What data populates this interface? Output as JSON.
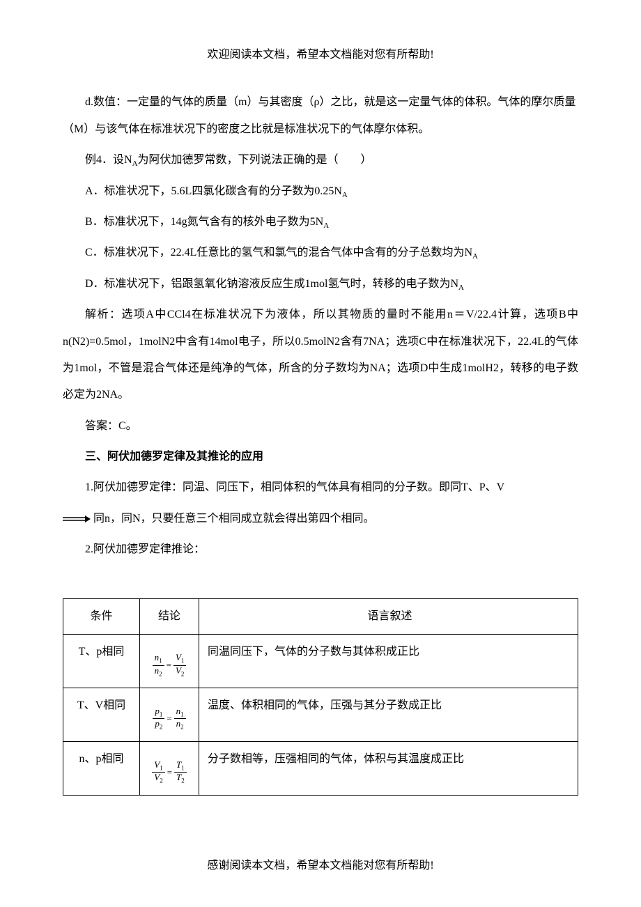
{
  "header": "欢迎阅读本文档，希望本文档能对您有所帮助!",
  "p1": "d.数值：一定量的气体的质量（m）与其密度（ρ）之比，就是这一定量气体的体积。气体的摩尔质量（M）与该气体在标准状况下的密度之比就是标准状况下的气体摩尔体积。",
  "p2_pre": "例4．设N",
  "p2_sub": "A",
  "p2_post": "为阿伏加德罗常数，下列说法正确的是（　　）",
  "optA_pre": "A．标准状况下，5.6L四氯化碳含有的分子数为0.25N",
  "optA_sub": "A",
  "optB_pre": "B．标准状况下，14g氮气含有的核外电子数为5N",
  "optB_sub": "A",
  "optC_pre": "C．标准状况下，22.4L任意比的氢气和氯气的混合气体中含有的分子总数均为N",
  "optC_sub": "A",
  "optD_pre": "D．标准状况下，铝跟氢氧化钠溶液反应生成1mol氢气时，转移的电子数为N",
  "optD_sub": "A",
  "analysis": "解析：选项A中CCl4在标准状况下为液体，所以其物质的量时不能用n＝V/22.4计算，选项B中n(N2)=0.5mol，1molN2中含有14mol电子，所以0.5molN2含有7NA；选项C中在标准状况下，22.4L的气体为1mol，不管是混合气体还是纯净的气体，所含的分子数均为NA；选项D中生成1molH2，转移的电子数必定为2NA。",
  "answer": "答案：C。",
  "section3_title": "三、阿伏加德罗定律及其推论的应用",
  "p3_1": "1.阿伏加德罗定律：同温、同压下，相同体积的气体具有相同的分子数。即同T、P、V",
  "p3_arrow_text": "同n，同N，只要任意三个相同成立就会得出第四个相同。",
  "p3_2": "2.阿伏加德罗定律推论：",
  "table": {
    "headers": [
      "条件",
      "结论",
      "语言叙述"
    ],
    "rows": [
      {
        "cond": "T、p相同",
        "formula": {
          "n1": "n",
          "s1": "1",
          "n2": "n",
          "s2": "2",
          "m1": "V",
          "t1": "1",
          "m2": "V",
          "t2": "2"
        },
        "desc": "同温同压下，气体的分子数与其体积成正比"
      },
      {
        "cond": "T、V相同",
        "formula": {
          "n1": "p",
          "s1": "1",
          "n2": "p",
          "s2": "2",
          "m1": "n",
          "t1": "1",
          "m2": "n",
          "t2": "2"
        },
        "desc": "温度、体积相同的气体，压强与其分子数成正比"
      },
      {
        "cond": "n、p相同",
        "formula": {
          "n1": "V",
          "s1": "1",
          "n2": "V",
          "s2": "2",
          "m1": "T",
          "t1": "1",
          "m2": "T",
          "t2": "2"
        },
        "desc": "分子数相等，压强相同的气体，体积与其温度成正比"
      }
    ]
  },
  "footer": "感谢阅读本文档，希望本文档能对您有所帮助!"
}
